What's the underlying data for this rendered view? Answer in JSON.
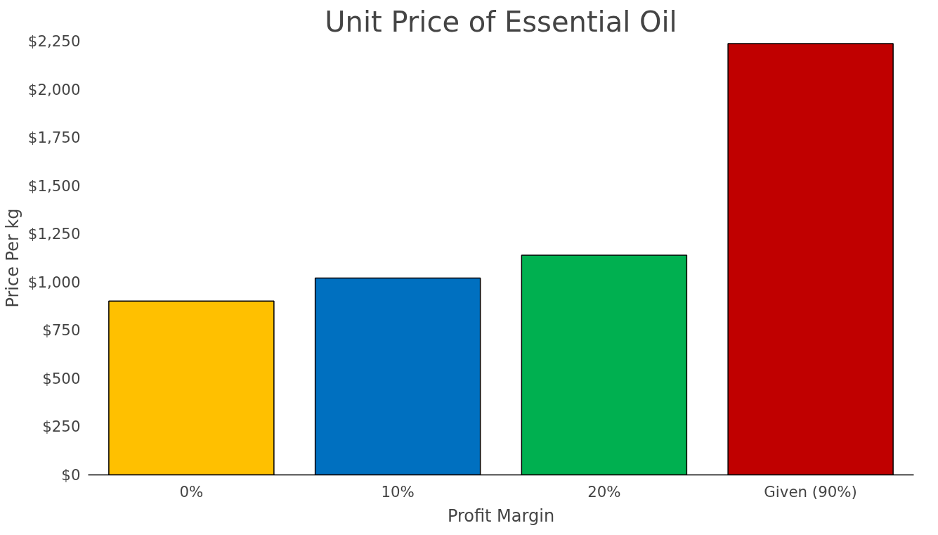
{
  "chart_data": {
    "type": "bar",
    "title": "Unit Price of Essential Oil",
    "xlabel": "Profit Margin",
    "ylabel": "Price Per kg",
    "categories": [
      "0%",
      "10%",
      "20%",
      "Given (90%)"
    ],
    "values": [
      902,
      1021,
      1140,
      2237
    ],
    "colors": [
      "#ffc000",
      "#0070c0",
      "#00b050",
      "#c00000"
    ],
    "ylim": [
      0,
      2250
    ],
    "yticks": [
      {
        "value": 0,
        "label": "$0"
      },
      {
        "value": 250,
        "label": "$250"
      },
      {
        "value": 500,
        "label": "$500"
      },
      {
        "value": 750,
        "label": "$750"
      },
      {
        "value": 1000,
        "label": "$1,000"
      },
      {
        "value": 1250,
        "label": "$1,250"
      },
      {
        "value": 1500,
        "label": "$1,500"
      },
      {
        "value": 1750,
        "label": "$1,750"
      },
      {
        "value": 2000,
        "label": "$2,000"
      },
      {
        "value": 2250,
        "label": "$2,250"
      }
    ],
    "grid": false
  }
}
